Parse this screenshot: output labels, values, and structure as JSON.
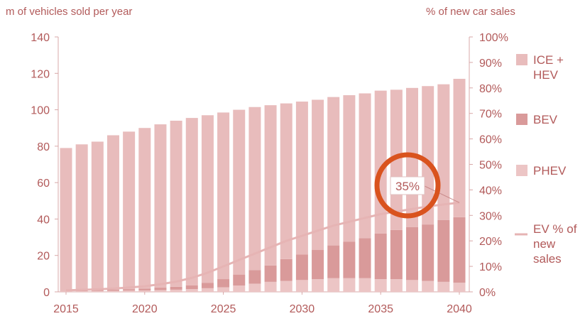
{
  "chart_data": {
    "type": "bar",
    "stacked": true,
    "ylabel_left": "m of vehicles sold per year",
    "ylabel_right": "% of new car sales",
    "x": [
      2015,
      2016,
      2017,
      2018,
      2019,
      2020,
      2021,
      2022,
      2023,
      2024,
      2025,
      2026,
      2027,
      2028,
      2029,
      2030,
      2031,
      2032,
      2033,
      2034,
      2035,
      2036,
      2037,
      2038,
      2039,
      2040
    ],
    "x_ticks": [
      "2015",
      "2020",
      "2025",
      "2030",
      "2035",
      "2040"
    ],
    "ylim_left": [
      0,
      140
    ],
    "yticks_left": [
      "0",
      "20",
      "40",
      "60",
      "80",
      "100",
      "120",
      "140"
    ],
    "ylim_right": [
      0,
      100
    ],
    "yticks_right": [
      "0%",
      "10%",
      "20%",
      "30%",
      "40%",
      "50%",
      "60%",
      "70%",
      "80%",
      "90%",
      "100%"
    ],
    "grid": false,
    "legend_position": "right",
    "series": [
      {
        "name": "PHEV",
        "kind": "bar",
        "color": "#ecc5c5",
        "values": [
          0.3,
          0.4,
          0.5,
          0.6,
          0.7,
          0.8,
          1.0,
          1.2,
          1.5,
          2.0,
          2.5,
          3.5,
          4.5,
          5.5,
          6.0,
          6.5,
          7.0,
          7.5,
          7.5,
          7.5,
          7.0,
          7.0,
          6.5,
          6.0,
          5.5,
          5.0
        ]
      },
      {
        "name": "BEV",
        "kind": "bar",
        "color": "#d99a9a",
        "values": [
          0.2,
          0.3,
          0.5,
          0.6,
          0.8,
          1.0,
          1.3,
          1.6,
          2.0,
          3.0,
          4.5,
          6.0,
          7.5,
          9.0,
          12.0,
          14.0,
          16.0,
          18.0,
          20.0,
          22.0,
          25.0,
          27.0,
          29.0,
          31.0,
          34.0,
          36.0
        ]
      },
      {
        "name": "ICE + HEV",
        "kind": "bar",
        "color": "#e8bcbc",
        "values": [
          78.5,
          80.3,
          81.5,
          84.8,
          86.5,
          88.2,
          89.7,
          91.2,
          92.0,
          92.0,
          91.5,
          90.5,
          89.5,
          88.0,
          85.5,
          84.0,
          82.5,
          81.5,
          80.5,
          79.5,
          78.5,
          77.0,
          76.5,
          76.0,
          74.5,
          76.0
        ]
      },
      {
        "name": "EV % of new sales",
        "kind": "line",
        "axis": "right",
        "color": "#e6b4b4",
        "values": [
          0.6,
          0.8,
          1.0,
          1.3,
          1.7,
          2.2,
          3.0,
          4.0,
          5.5,
          7.5,
          10.0,
          12.5,
          15.0,
          17.5,
          20.0,
          22.0,
          24.0,
          26.0,
          27.5,
          29.0,
          30.5,
          31.5,
          32.5,
          33.5,
          34.3,
          35.0
        ]
      }
    ],
    "legend": [
      {
        "label": "ICE + HEV",
        "color": "#e8bcbc",
        "kind": "box"
      },
      {
        "label": "BEV",
        "color": "#d99a9a",
        "kind": "box"
      },
      {
        "label": "PHEV",
        "color": "#ecc5c5",
        "kind": "box"
      },
      {
        "label": "EV % of new sales",
        "color": "#e6b4b4",
        "kind": "line"
      }
    ],
    "annotation": {
      "text": "35%",
      "highlight_color": "#d9531e"
    },
    "axis_color": "#d8a8a8",
    "text_color": "#b25a5a"
  }
}
